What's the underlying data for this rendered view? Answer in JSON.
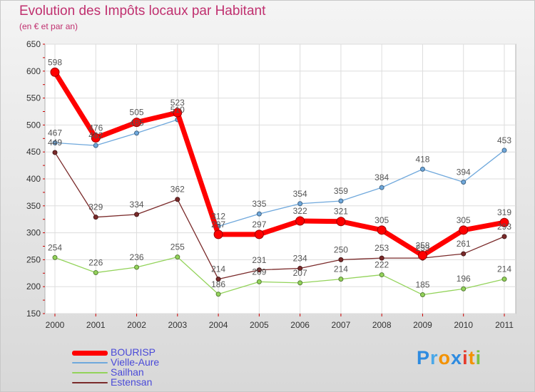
{
  "header": {
    "title": "Evolution des Impôts locaux par Habitant",
    "subtitle": "(en € et par an)"
  },
  "logo": {
    "text": "Proxiti",
    "letters": [
      {
        "ch": "P",
        "color": "#2e8be0"
      },
      {
        "ch": "r",
        "color": "#4aa8e8"
      },
      {
        "ch": "o",
        "color": "#f39200"
      },
      {
        "ch": "x",
        "color": "#2e8be0"
      },
      {
        "ch": "i",
        "color": "#e53b2c"
      },
      {
        "ch": "t",
        "color": "#f39200"
      },
      {
        "ch": "i",
        "color": "#7cc242"
      }
    ]
  },
  "chart_data": {
    "type": "line",
    "title": "Evolution des Impôts locaux par Habitant",
    "subtitle": "(en € et par an)",
    "xlabel": "",
    "ylabel": "",
    "categories": [
      "2000",
      "2001",
      "2002",
      "2003",
      "2004",
      "2005",
      "2006",
      "2007",
      "2008",
      "2009",
      "2010",
      "2011"
    ],
    "ylim": [
      150,
      650
    ],
    "yticks": [
      150,
      200,
      250,
      300,
      350,
      400,
      450,
      500,
      550,
      600,
      650
    ],
    "grid": true,
    "legend_position": "bottom-left",
    "series": [
      {
        "name": "BOURISP",
        "color": "#ff0000",
        "values": [
          598,
          476,
          505,
          523,
          297,
          297,
          322,
          321,
          305,
          258,
          305,
          319
        ]
      },
      {
        "name": "Vielle-Aure",
        "color": "#6fa8dc",
        "values": [
          467,
          462,
          485,
          510,
          312,
          335,
          354,
          359,
          384,
          418,
          394,
          453
        ]
      },
      {
        "name": "Sailhan",
        "color": "#93d35a",
        "values": [
          254,
          226,
          236,
          255,
          186,
          209,
          207,
          214,
          222,
          185,
          196,
          214
        ]
      },
      {
        "name": "Estensan",
        "color": "#7a2a2a",
        "values": [
          449,
          329,
          334,
          362,
          214,
          231,
          234,
          250,
          253,
          253,
          261,
          293
        ]
      }
    ]
  }
}
